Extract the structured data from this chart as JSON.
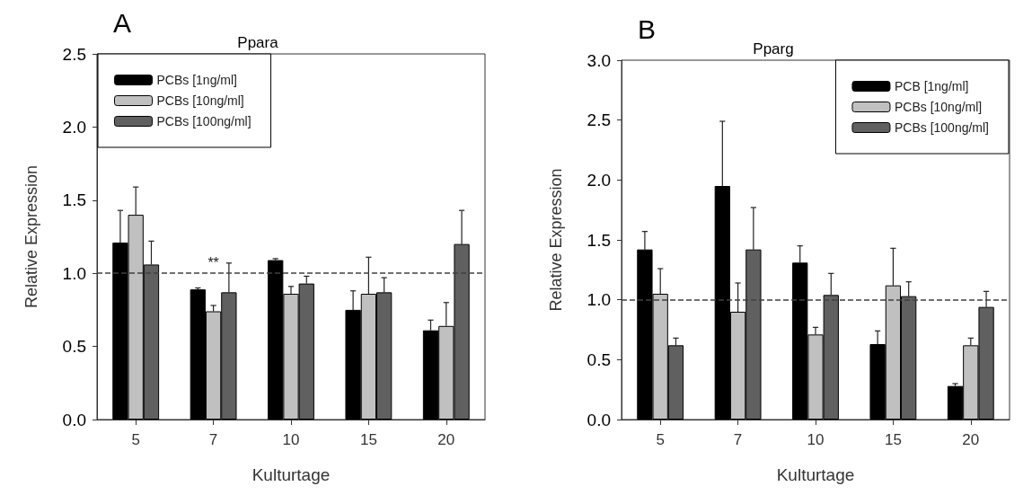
{
  "chart_data": [
    {
      "type": "bar",
      "title": "Ppara",
      "xlabel": "Kulturtage",
      "ylabel": "Relative Expression",
      "annotations": [
        "A",
        {
          "text": "**",
          "x": "7",
          "y": 1.02
        }
      ],
      "categories": [
        "5",
        "7",
        "10",
        "15",
        "20"
      ],
      "series": [
        {
          "name": "PCBs [1ng/ml]",
          "color": "#000000",
          "values": [
            1.21,
            0.89,
            1.09,
            0.75,
            0.61
          ],
          "errors": [
            [
              1.21,
              1.43
            ],
            [
              0.89,
              0.9
            ],
            [
              1.09,
              1.1
            ],
            [
              0.75,
              0.88
            ],
            [
              0.61,
              0.68
            ]
          ]
        },
        {
          "name": "PCBs [10ng/ml]",
          "color": "#c0c0c0",
          "values": [
            1.4,
            0.74,
            0.86,
            0.86,
            0.64
          ],
          "errors": [
            [
              1.4,
              1.59
            ],
            [
              0.74,
              0.78
            ],
            [
              0.86,
              0.91
            ],
            [
              0.86,
              1.11
            ],
            [
              0.64,
              0.8
            ]
          ]
        },
        {
          "name": "PCBs [100ng/ml]",
          "color": "#606060",
          "values": [
            1.06,
            0.87,
            0.93,
            0.87,
            1.2
          ],
          "errors": [
            [
              1.06,
              1.22
            ],
            [
              0.87,
              1.07
            ],
            [
              0.93,
              0.98
            ],
            [
              0.87,
              0.97
            ],
            [
              1.2,
              1.43
            ]
          ]
        }
      ],
      "ylim": [
        0,
        2.5
      ],
      "yticks": [
        {
          "value": 0,
          "label": "0.0"
        },
        {
          "value": 0.5,
          "label": "0.5"
        },
        {
          "value": 1,
          "label": "1.0"
        },
        {
          "value": 1.5,
          "label": "1.5"
        },
        {
          "value": 2,
          "label": "2.0"
        },
        {
          "value": 2.5,
          "label": "2.5"
        }
      ],
      "ref_lines": [
        {
          "axis": "y",
          "value": 1,
          "line_style": "dashed",
          "color": "#404040"
        }
      ],
      "legend": "top left",
      "grid": false
    },
    {
      "type": "bar",
      "title": "Pparg",
      "xlabel": "Kulturtage",
      "ylabel": "Relative Expression",
      "annotations": [
        "B"
      ],
      "categories": [
        "5",
        "7",
        "10",
        "15",
        "20"
      ],
      "series": [
        {
          "name": "PCB [1ng/ml]",
          "color": "#000000",
          "values": [
            1.42,
            1.95,
            1.31,
            0.63,
            0.28
          ],
          "errors": [
            [
              1.42,
              1.57
            ],
            [
              1.95,
              2.49
            ],
            [
              1.31,
              1.45
            ],
            [
              0.63,
              0.74
            ],
            [
              0.28,
              0.3
            ]
          ]
        },
        {
          "name": "PCBs [10ng/ml]",
          "color": "#c0c0c0",
          "values": [
            1.05,
            0.9,
            0.71,
            1.12,
            0.62
          ],
          "errors": [
            [
              1.05,
              1.26
            ],
            [
              0.9,
              1.14
            ],
            [
              0.71,
              0.77
            ],
            [
              1.12,
              1.43
            ],
            [
              0.62,
              0.68
            ]
          ]
        },
        {
          "name": "PCBs [100ng/ml]",
          "color": "#606060",
          "values": [
            0.62,
            1.42,
            1.04,
            1.03,
            0.94
          ],
          "errors": [
            [
              0.62,
              0.68
            ],
            [
              1.42,
              1.77
            ],
            [
              1.04,
              1.22
            ],
            [
              1.03,
              1.15
            ],
            [
              0.94,
              1.07
            ]
          ]
        }
      ],
      "ylim": [
        0,
        3
      ],
      "yticks": [
        {
          "value": 0,
          "label": "0.0"
        },
        {
          "value": 0.5,
          "label": "0.5"
        },
        {
          "value": 1,
          "label": "1.0"
        },
        {
          "value": 1.5,
          "label": "1.5"
        },
        {
          "value": 2,
          "label": "2.0"
        },
        {
          "value": 2.5,
          "label": "2.5"
        },
        {
          "value": 3,
          "label": "3.0"
        }
      ],
      "ref_lines": [
        {
          "axis": "y",
          "value": 1,
          "line_style": "dashed",
          "color": "#404040"
        }
      ],
      "legend": "top right",
      "grid": false
    }
  ]
}
